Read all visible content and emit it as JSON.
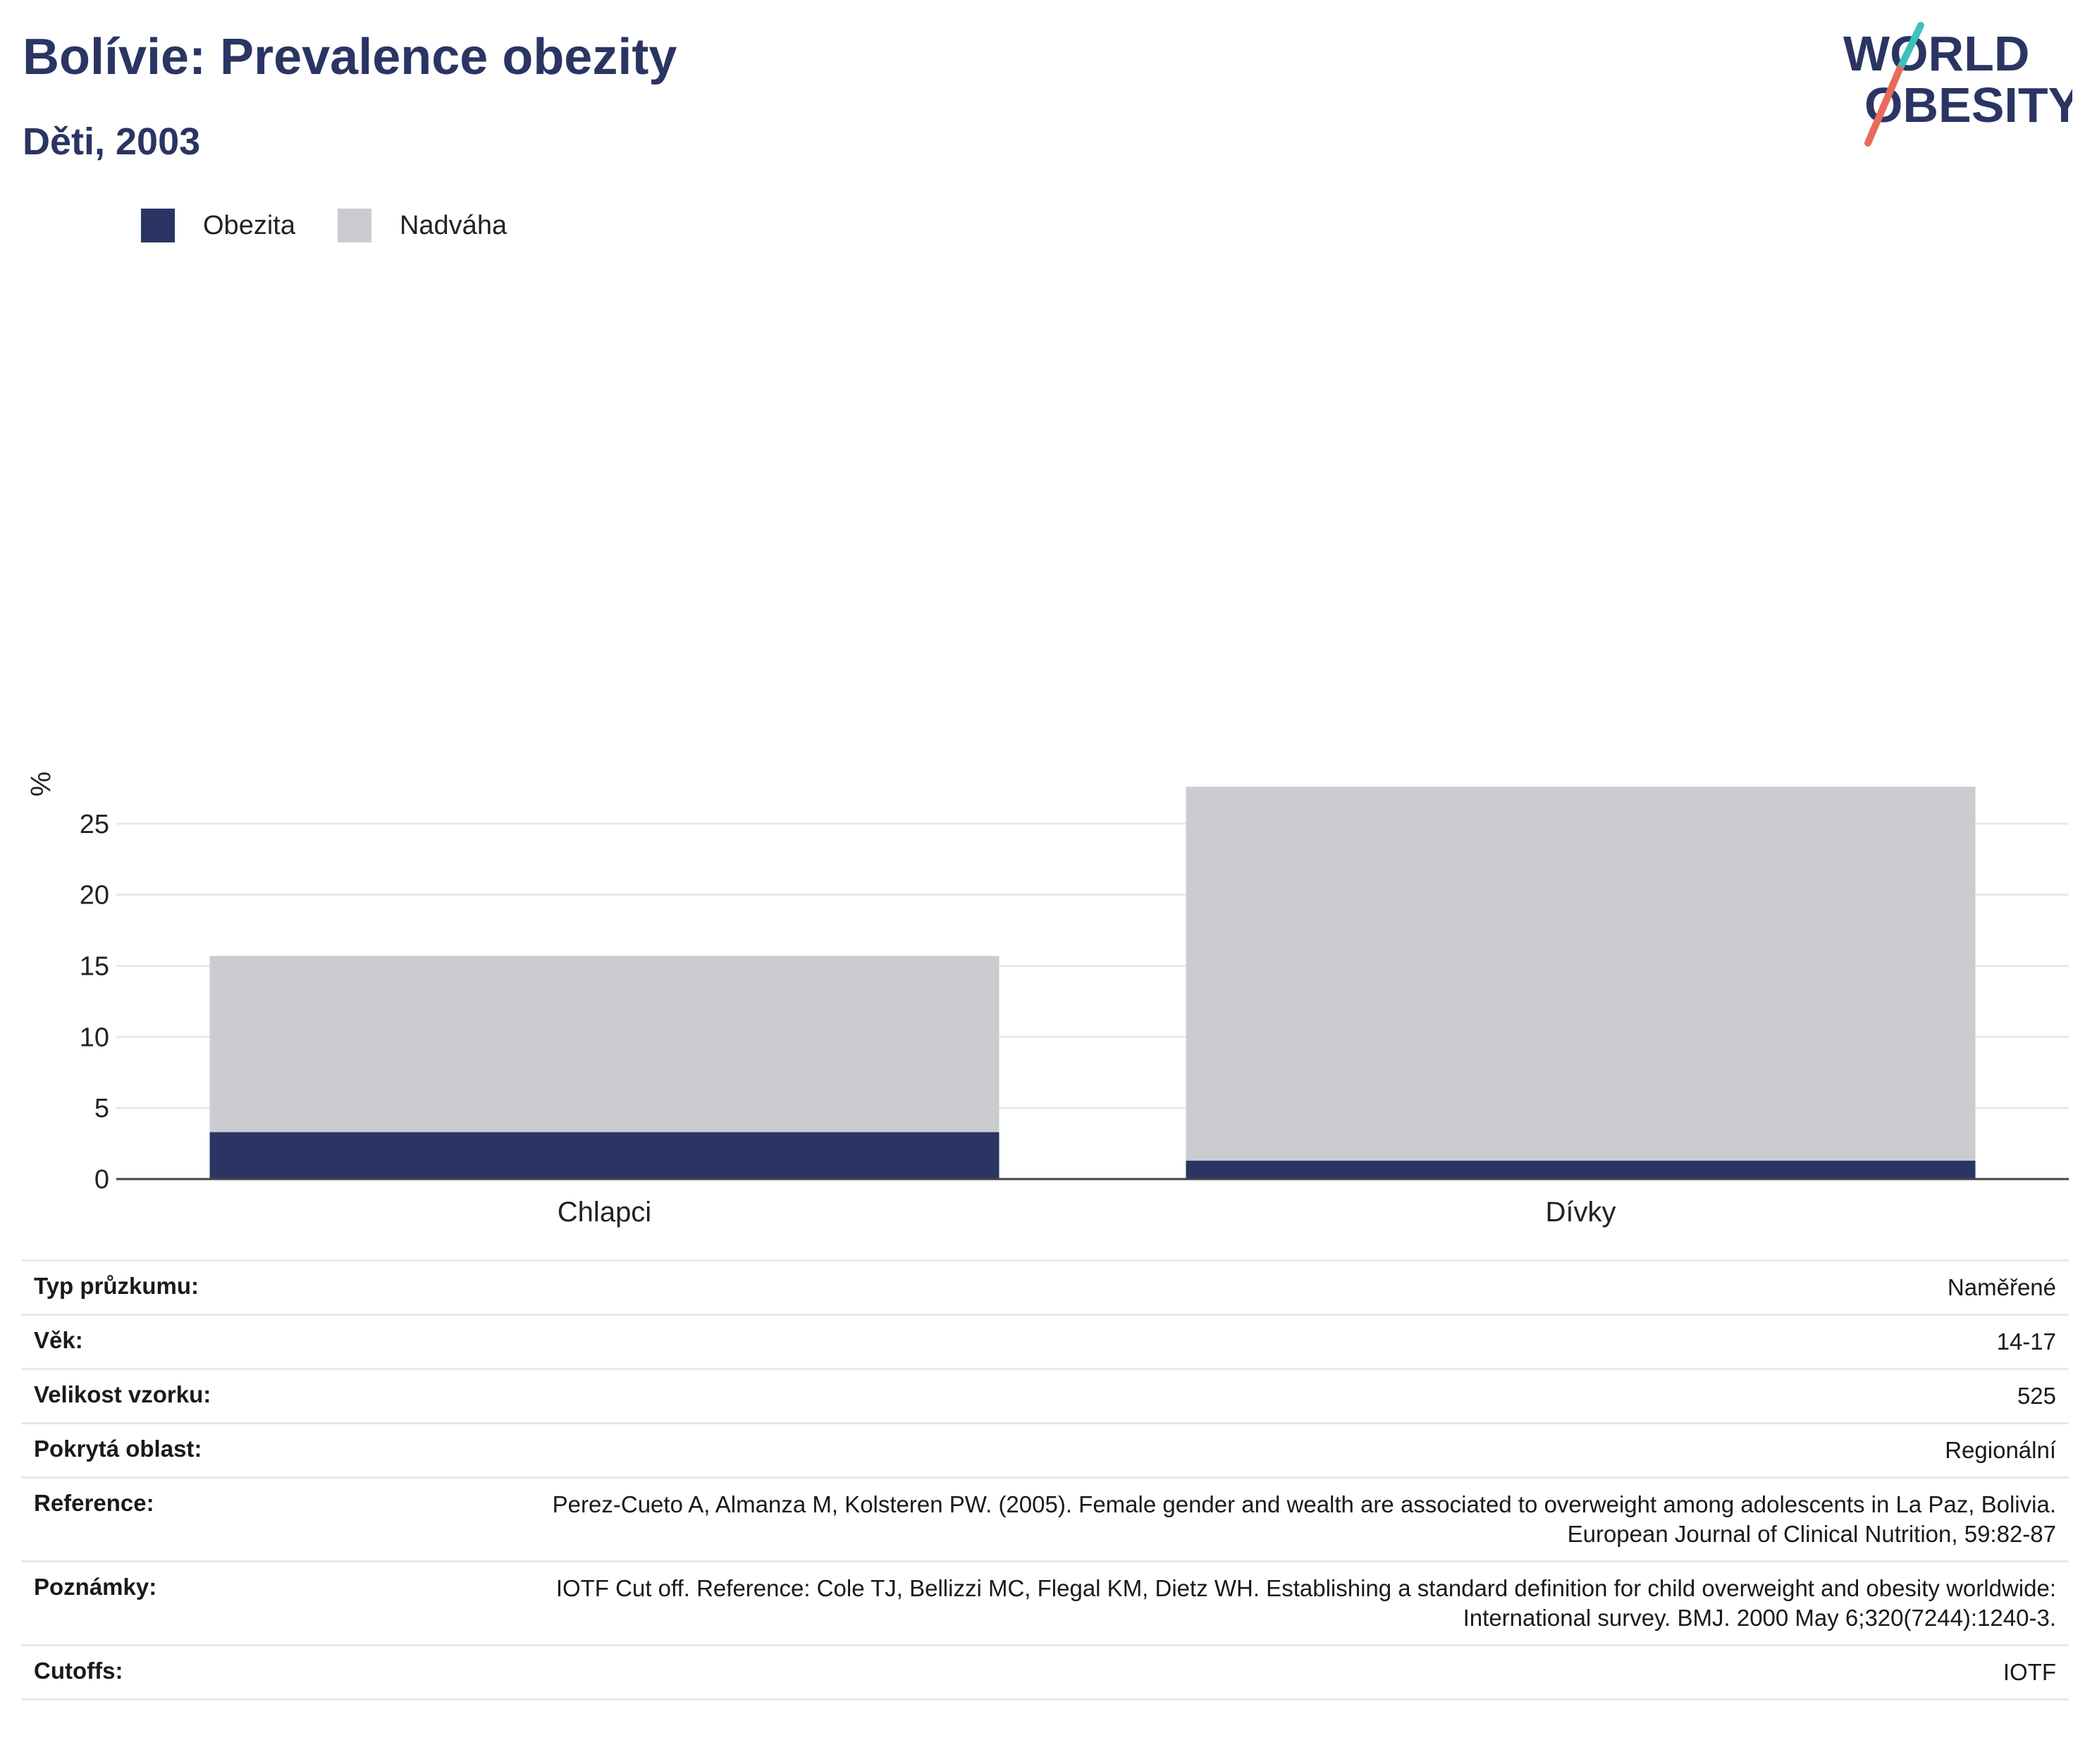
{
  "header": {
    "title": "Bolívie: Prevalence obezity",
    "subtitle": "Děti, 2003",
    "logo_line1": "WORLD",
    "logo_line2": "OBESITY"
  },
  "colors": {
    "obesity": "#2a3563",
    "overweight": "#cacccf",
    "logo_teal": "#3fbfbf",
    "logo_coral": "#e86a5a",
    "grid": "#e9e9e9"
  },
  "legend": {
    "items": [
      {
        "label": "Obezita",
        "color": "#2a3563"
      },
      {
        "label": "Nadváha",
        "color": "#cacccf"
      }
    ]
  },
  "chart_data": {
    "type": "bar",
    "stacked": true,
    "categories": [
      "Chlapci",
      "Dívky"
    ],
    "series": [
      {
        "name": "Obezita",
        "values": [
          3.3,
          1.3
        ]
      },
      {
        "name": "Nadváha",
        "values": [
          12.4,
          26.3
        ]
      }
    ],
    "ylabel": "%",
    "xlabel": "",
    "ylim": [
      0,
      27.6
    ],
    "yticks": [
      0,
      5,
      10,
      15,
      20,
      25
    ],
    "grid": true,
    "legend_position": "top-left"
  },
  "info": {
    "rows": [
      {
        "label": "Typ průzkumu:",
        "value": "Naměřené"
      },
      {
        "label": "Věk:",
        "value": "14-17"
      },
      {
        "label": "Velikost vzorku:",
        "value": "525"
      },
      {
        "label": "Pokrytá oblast:",
        "value": "Regionální"
      },
      {
        "label": "Reference:",
        "value": "Perez-Cueto A, Almanza M, Kolsteren PW. (2005). Female gender and wealth are associated to overweight among adolescents in La Paz, Bolivia. European Journal of Clinical Nutrition, 59:82-87"
      },
      {
        "label": "Poznámky:",
        "value": "IOTF Cut off. Reference: Cole TJ, Bellizzi MC, Flegal KM, Dietz WH. Establishing a standard definition for child overweight and obesity worldwide: International survey. BMJ. 2000 May 6;320(7244):1240-3."
      },
      {
        "label": "Cutoffs:",
        "value": "IOTF"
      }
    ]
  }
}
